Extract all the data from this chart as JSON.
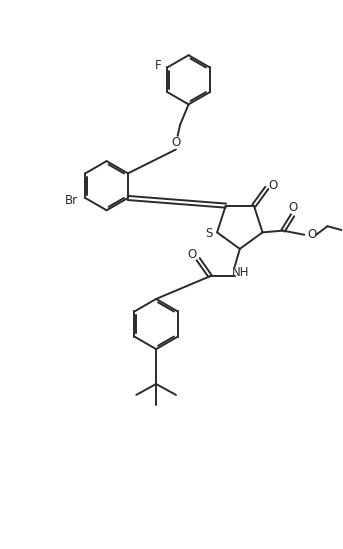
{
  "bg_color": "#ffffff",
  "line_color": "#2a2a2a",
  "line_width": 1.4,
  "fig_width": 3.43,
  "fig_height": 5.49,
  "dpi": 100,
  "xlim": [
    0,
    10
  ],
  "ylim": [
    0,
    16
  ]
}
